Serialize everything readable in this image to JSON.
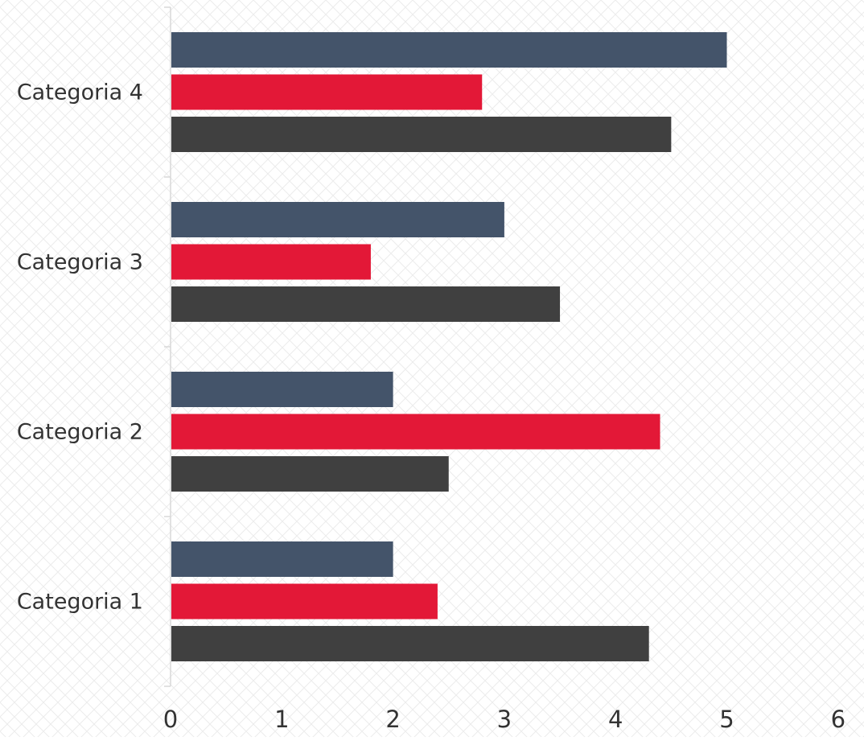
{
  "chart_data": {
    "type": "bar",
    "orientation": "horizontal",
    "categories": [
      "Categoria 1",
      "Categoria 2",
      "Categoria 3",
      "Categoria 4"
    ],
    "series": [
      {
        "color": "#44546a",
        "values": [
          2.0,
          2.0,
          3.0,
          5.0
        ]
      },
      {
        "color": "#e31837",
        "values": [
          2.4,
          4.4,
          1.8,
          2.8
        ]
      },
      {
        "color": "#404040",
        "values": [
          4.3,
          2.5,
          3.5,
          4.5
        ]
      }
    ],
    "xlim": [
      0,
      6
    ],
    "x_ticks": [
      "0",
      "1",
      "2",
      "3",
      "4",
      "5",
      "6"
    ],
    "grid": false,
    "legend": "none",
    "background": "diamond lattice pattern"
  }
}
